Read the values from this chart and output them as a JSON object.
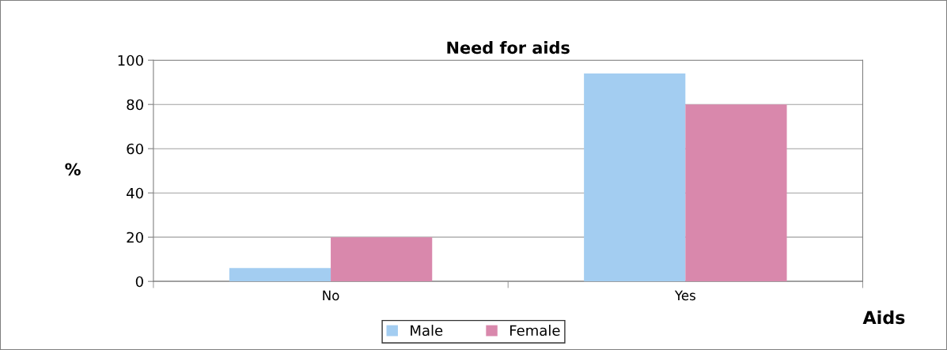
{
  "chart_data": {
    "type": "bar",
    "title": "Need for aids",
    "xlabel": "Aids",
    "ylabel": "%",
    "categories": [
      "No",
      "Yes"
    ],
    "series": [
      {
        "name": "Male",
        "color": "#a3cdf1",
        "values": [
          6,
          94
        ]
      },
      {
        "name": "Female",
        "color": "#d988ac",
        "values": [
          20,
          80
        ]
      }
    ],
    "ylim": [
      0,
      100
    ],
    "yticks": [
      0,
      20,
      40,
      60,
      80,
      100
    ],
    "grid": "y",
    "legend": "bottom"
  }
}
